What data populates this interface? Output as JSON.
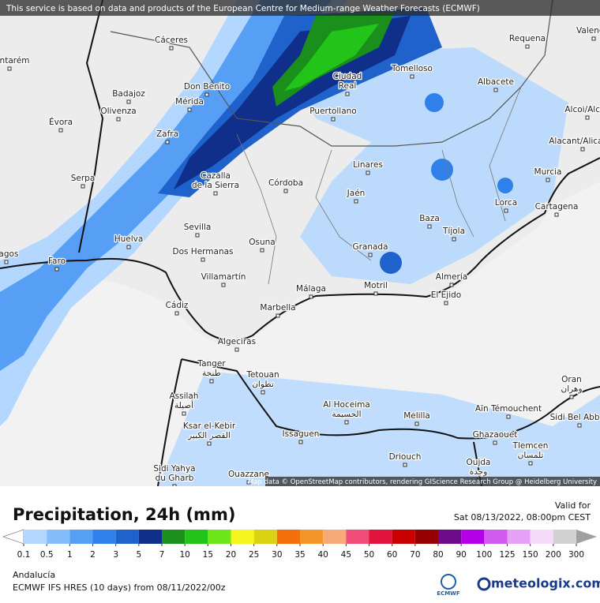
{
  "notice": "This service is based on data and products of the European Centre for Medium-range Weather Forecasts (ECMWF)",
  "attribution": "Map data © OpenStreetMap contributors, rendering GIScience Research Group @ Heidelberg University",
  "cities": [
    {
      "lines": [
        "Cáceres"
      ]
    },
    {
      "lines": [
        "Tomelloso"
      ]
    },
    {
      "lines": [
        "Requena"
      ]
    },
    {
      "lines": [
        "Valencia"
      ]
    },
    {
      "lines": [
        "Santarém"
      ]
    },
    {
      "lines": [
        "Don Benito"
      ]
    },
    {
      "lines": [
        "Ciudad",
        "Real"
      ]
    },
    {
      "lines": [
        "Albacete"
      ]
    },
    {
      "lines": [
        "Badajoz"
      ]
    },
    {
      "lines": [
        "Mérida"
      ]
    },
    {
      "lines": [
        "Olivenza"
      ]
    },
    {
      "lines": [
        "Évora"
      ]
    },
    {
      "lines": [
        "Puertollano"
      ]
    },
    {
      "lines": [
        "Alcoi/Alcoy"
      ]
    },
    {
      "lines": [
        "Zafra"
      ]
    },
    {
      "lines": [
        "Alacant/Alicante"
      ]
    },
    {
      "lines": [
        "Linares"
      ]
    },
    {
      "lines": [
        "Murcia"
      ]
    },
    {
      "lines": [
        "Serpa"
      ]
    },
    {
      "lines": [
        "Cazalla",
        "de la Sierra"
      ]
    },
    {
      "lines": [
        "Córdoba"
      ]
    },
    {
      "lines": [
        "Jaén"
      ]
    },
    {
      "lines": [
        "Lorca"
      ]
    },
    {
      "lines": [
        "Cartagena"
      ]
    },
    {
      "lines": [
        "Baza"
      ]
    },
    {
      "lines": [
        "Sevilla"
      ]
    },
    {
      "lines": [
        "Tíjola"
      ]
    },
    {
      "lines": [
        "Huelva"
      ]
    },
    {
      "lines": [
        "Osuna"
      ]
    },
    {
      "lines": [
        "Dos Hermanas"
      ]
    },
    {
      "lines": [
        "Granada"
      ]
    },
    {
      "lines": [
        "Faro"
      ]
    },
    {
      "lines": [
        "Lagos"
      ]
    },
    {
      "lines": [
        "Almería"
      ]
    },
    {
      "lines": [
        "Villamartín"
      ]
    },
    {
      "lines": [
        "Málaga"
      ]
    },
    {
      "lines": [
        "Motril"
      ]
    },
    {
      "lines": [
        "El Ejido"
      ]
    },
    {
      "lines": [
        "Cádiz"
      ]
    },
    {
      "lines": [
        "Marbella"
      ]
    },
    {
      "lines": [
        "Algeciras"
      ]
    },
    {
      "lines": [
        "Tanger",
        "طنجة"
      ]
    },
    {
      "lines": [
        "Tetouan",
        "تطوان"
      ]
    },
    {
      "lines": [
        "Oran",
        "وهران"
      ]
    },
    {
      "lines": [
        "Al Hoceima",
        "الحسيمة"
      ]
    },
    {
      "lines": [
        "Assilah",
        "أصيلة"
      ]
    },
    {
      "lines": [
        "Melilla"
      ]
    },
    {
      "lines": [
        "Aïn Témouchent"
      ]
    },
    {
      "lines": [
        "Sidi Bel Abbès"
      ]
    },
    {
      "lines": [
        "Ksar el-Kebir",
        "القصر الكبير"
      ]
    },
    {
      "lines": [
        "Issaguen"
      ]
    },
    {
      "lines": [
        "Ghazaouet"
      ]
    },
    {
      "lines": [
        "Tlemcen",
        "تلمسان"
      ]
    },
    {
      "lines": [
        "Driouch"
      ]
    },
    {
      "lines": [
        "Oujda",
        "وجدة"
      ]
    },
    {
      "lines": [
        "Sidi Yahya",
        "du Gharb"
      ]
    },
    {
      "lines": [
        "Ouazzane"
      ]
    }
  ],
  "footer": {
    "title": "Precipitation, 24h (mm)",
    "valid_label": "Valid for",
    "valid_time": "Sat 08/13/2022, 08:00pm CEST",
    "region": "Andalucía",
    "model": "ECMWF IFS HRES (10 days) from 08/11/2022/00z",
    "ecmwf_logo": "ECMWF",
    "brand": "meteologix.com"
  },
  "legend": {
    "ticks": [
      0.1,
      0.5,
      1,
      2,
      3,
      5,
      7,
      10,
      15,
      20,
      25,
      30,
      35,
      40,
      45,
      50,
      60,
      70,
      80,
      90,
      100,
      125,
      150,
      200,
      300
    ],
    "under_color": "#ffffff",
    "colors": [
      "#b4d7ff",
      "#84bdfb",
      "#569ff4",
      "#2f80ea",
      "#1f62cc",
      "#0f2f8a",
      "#1b8f1b",
      "#22c41a",
      "#6ee61a",
      "#f5f51e",
      "#dcd214",
      "#f5700a",
      "#f5962a",
      "#f5aa78",
      "#f04e78",
      "#e0143c",
      "#c80000",
      "#960000",
      "#6e0a8c",
      "#b400e6",
      "#d25af0",
      "#e6a0f5",
      "#f5dcfa",
      "#d2d2d2"
    ],
    "over_color": "#a0a0a0"
  }
}
